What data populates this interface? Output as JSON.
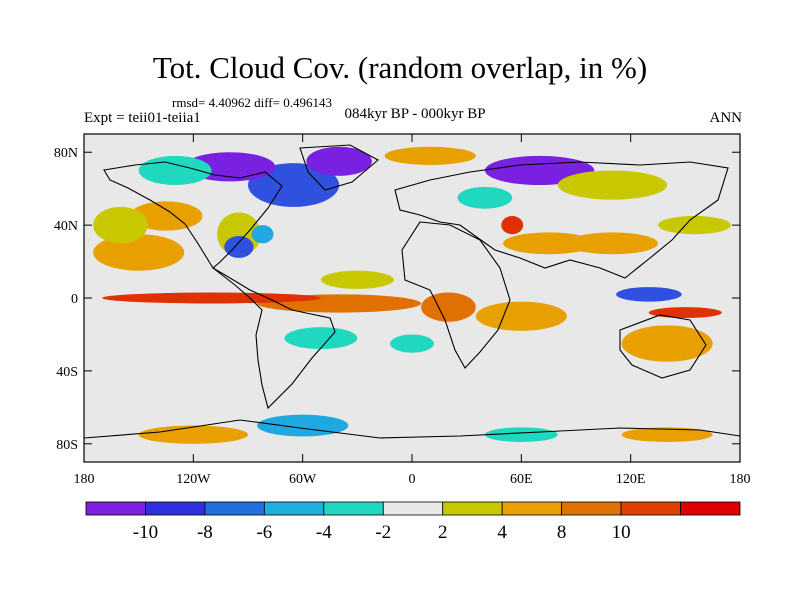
{
  "title": "Tot. Cloud Cov. (random overlap, in %)",
  "stats": "rmsd= 4.40962 diff= 0.496143",
  "experiment": "Expt = teii01-teiia1",
  "period": "084kyr BP - 000kyr BP",
  "season": "ANN",
  "map": {
    "lon_range": [
      -180,
      180
    ],
    "lat_range": [
      -90,
      90
    ],
    "lat_ticks": [
      {
        "lat": 80,
        "label": "80N"
      },
      {
        "lat": 40,
        "label": "40N"
      },
      {
        "lat": 0,
        "label": "0"
      },
      {
        "lat": -40,
        "label": "40S"
      },
      {
        "lat": -80,
        "label": "80S"
      }
    ],
    "lon_ticks": [
      {
        "lon": -180,
        "label": "180"
      },
      {
        "lon": -120,
        "label": "120W"
      },
      {
        "lon": -60,
        "label": "60W"
      },
      {
        "lon": 0,
        "label": "0"
      },
      {
        "lon": 60,
        "label": "60E"
      },
      {
        "lon": 120,
        "label": "120E"
      },
      {
        "lon": 180,
        "label": "180"
      }
    ],
    "background_color": "#e8e8e8",
    "anomaly_patches": [
      {
        "lon": -150,
        "lat": 25,
        "rlon": 25,
        "rlat": 10,
        "color": "#e8a000"
      },
      {
        "lon": -135,
        "lat": 45,
        "rlon": 20,
        "rlat": 8,
        "color": "#e8a000"
      },
      {
        "lon": -160,
        "lat": 40,
        "rlon": 15,
        "rlat": 10,
        "color": "#c8c800"
      },
      {
        "lon": -95,
        "lat": 35,
        "rlon": 12,
        "rlat": 12,
        "color": "#c8c800"
      },
      {
        "lon": -95,
        "lat": 28,
        "rlon": 8,
        "rlat": 6,
        "color": "#3050e0"
      },
      {
        "lon": -82,
        "lat": 35,
        "rlon": 6,
        "rlat": 5,
        "color": "#20a8e0"
      },
      {
        "lon": -65,
        "lat": 62,
        "rlon": 25,
        "rlat": 12,
        "color": "#3050e0"
      },
      {
        "lon": -100,
        "lat": 72,
        "rlon": 25,
        "rlat": 8,
        "color": "#7a20e0"
      },
      {
        "lon": -40,
        "lat": 75,
        "rlon": 18,
        "rlat": 8,
        "color": "#7a20e0"
      },
      {
        "lon": -130,
        "lat": 70,
        "rlon": 20,
        "rlat": 8,
        "color": "#20d8c0"
      },
      {
        "lon": 10,
        "lat": 78,
        "rlon": 25,
        "rlat": 5,
        "color": "#e8a000"
      },
      {
        "lon": 70,
        "lat": 70,
        "rlon": 30,
        "rlat": 8,
        "color": "#7a20e0"
      },
      {
        "lon": 110,
        "lat": 62,
        "rlon": 30,
        "rlat": 8,
        "color": "#c8c800"
      },
      {
        "lon": 40,
        "lat": 55,
        "rlon": 15,
        "rlat": 6,
        "color": "#20d8c0"
      },
      {
        "lon": 55,
        "lat": 40,
        "rlon": 6,
        "rlat": 5,
        "color": "#e03000"
      },
      {
        "lon": 75,
        "lat": 30,
        "rlon": 25,
        "rlat": 6,
        "color": "#e8a000"
      },
      {
        "lon": 110,
        "lat": 30,
        "rlon": 25,
        "rlat": 6,
        "color": "#e8a000"
      },
      {
        "lon": 155,
        "lat": 40,
        "rlon": 20,
        "rlat": 5,
        "color": "#c8c800"
      },
      {
        "lon": -40,
        "lat": -3,
        "rlon": 45,
        "rlat": 5,
        "color": "#e07000"
      },
      {
        "lon": -110,
        "lat": 0,
        "rlon": 60,
        "rlat": 3,
        "color": "#e03000"
      },
      {
        "lon": -30,
        "lat": 10,
        "rlon": 20,
        "rlat": 5,
        "color": "#c8c800"
      },
      {
        "lon": 20,
        "lat": -5,
        "rlon": 15,
        "rlat": 8,
        "color": "#e07000"
      },
      {
        "lon": 60,
        "lat": -10,
        "rlon": 25,
        "rlat": 8,
        "color": "#e8a000"
      },
      {
        "lon": -50,
        "lat": -22,
        "rlon": 20,
        "rlat": 6,
        "color": "#20d8c0"
      },
      {
        "lon": 0,
        "lat": -25,
        "rlon": 12,
        "rlat": 5,
        "color": "#20d8c0"
      },
      {
        "lon": 140,
        "lat": -25,
        "rlon": 25,
        "rlat": 10,
        "color": "#e8a000"
      },
      {
        "lon": 130,
        "lat": 2,
        "rlon": 18,
        "rlat": 4,
        "color": "#3050e0"
      },
      {
        "lon": 150,
        "lat": -8,
        "rlon": 20,
        "rlat": 3,
        "color": "#e03000"
      },
      {
        "lon": -60,
        "lat": -70,
        "rlon": 25,
        "rlat": 6,
        "color": "#20a8e0"
      },
      {
        "lon": -120,
        "lat": -75,
        "rlon": 30,
        "rlat": 5,
        "color": "#e8a000"
      },
      {
        "lon": 60,
        "lat": -75,
        "rlon": 20,
        "rlat": 4,
        "color": "#20d8c0"
      },
      {
        "lon": 140,
        "lat": -75,
        "rlon": 25,
        "rlat": 4,
        "color": "#e8a000"
      }
    ]
  },
  "colorbar": {
    "colors": [
      "#8020e0",
      "#3030e0",
      "#2070e0",
      "#20b0e0",
      "#20d8c0",
      "#e8e8e8",
      "#c8c800",
      "#e8a000",
      "#e07000",
      "#e04000",
      "#e00000"
    ],
    "labels": [
      "-10",
      "-8",
      "-6",
      "-4",
      "-2",
      "2",
      "4",
      "8",
      "10"
    ]
  }
}
